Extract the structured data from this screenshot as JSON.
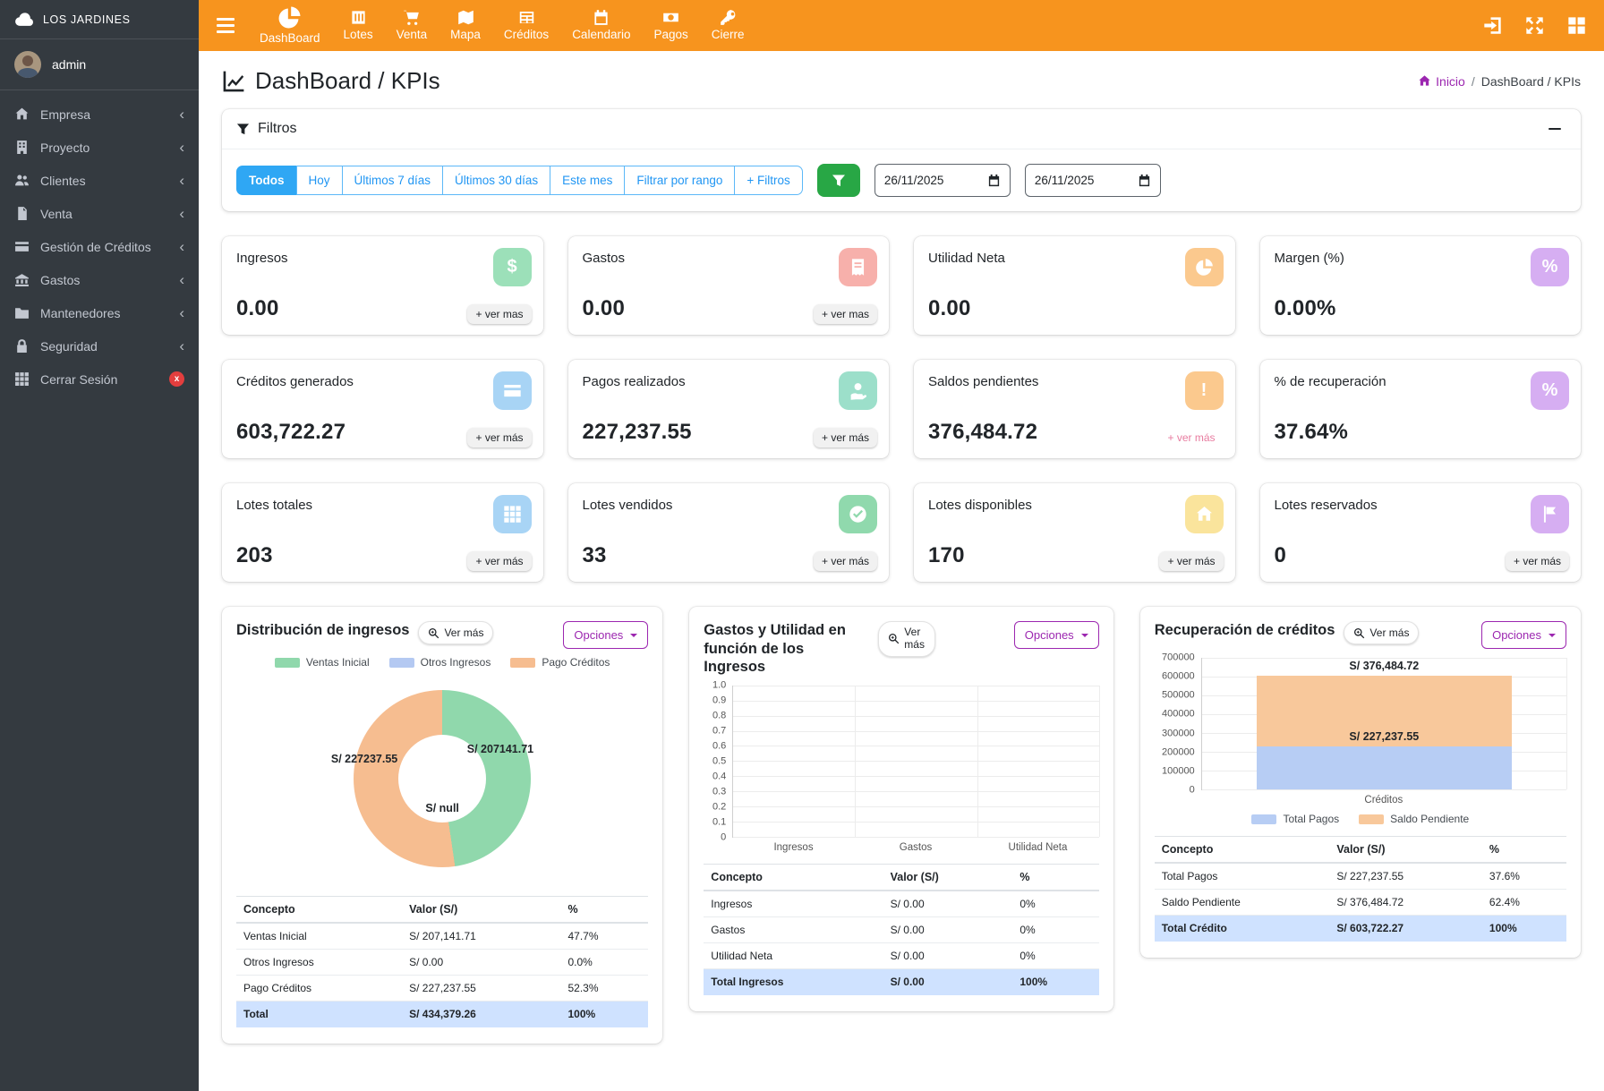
{
  "app": {
    "brand": "LOS JARDINES",
    "user": "admin"
  },
  "theme": {
    "navbar_orange": "#f7941e",
    "sidebar_dark": "#343a40",
    "primary_blue": "#2fa7f4",
    "success_green": "#28a745",
    "accent_purple": "#9c27b0",
    "table_total_bg": "#cfe2ff"
  },
  "sidebar": {
    "items": [
      {
        "label": "Empresa"
      },
      {
        "label": "Proyecto"
      },
      {
        "label": "Clientes"
      },
      {
        "label": "Venta"
      },
      {
        "label": "Gestión de Créditos"
      },
      {
        "label": "Gastos"
      },
      {
        "label": "Mantenedores"
      },
      {
        "label": "Seguridad"
      }
    ],
    "logout": {
      "label": "Cerrar Sesión",
      "badge": "x"
    }
  },
  "topnav": {
    "items": [
      {
        "label": "DashBoard"
      },
      {
        "label": "Lotes"
      },
      {
        "label": "Venta"
      },
      {
        "label": "Mapa"
      },
      {
        "label": "Créditos"
      },
      {
        "label": "Calendario"
      },
      {
        "label": "Pagos"
      },
      {
        "label": "Cierre"
      }
    ]
  },
  "header": {
    "title": "DashBoard / KPIs",
    "breadcrumb_home": "Inicio",
    "breadcrumb_sep": "/",
    "breadcrumb_current": "DashBoard / KPIs"
  },
  "filters": {
    "title": "Filtros",
    "buttons": [
      "Todos",
      "Hoy",
      "Últimos 7 días",
      "Últimos 30 días",
      "Este mes",
      "Filtrar por rango",
      "+ Filtros"
    ],
    "active_button": "Todos",
    "date_from": "26/11/2025",
    "date_to": "26/11/2025"
  },
  "kpis": [
    {
      "title": "Ingresos",
      "value": "0.00",
      "link": "+ ver mas",
      "color": "#9ce0b9"
    },
    {
      "title": "Gastos",
      "value": "0.00",
      "link": "+ ver mas",
      "color": "#f7b0ab"
    },
    {
      "title": "Utilidad Neta",
      "value": "0.00",
      "link": "",
      "color": "#fbc98e"
    },
    {
      "title": "Margen (%)",
      "value": "0.00%",
      "link": "",
      "color": "#d6aef2"
    },
    {
      "title": "Créditos generados",
      "value": "603,722.27",
      "link": "+ ver más",
      "color": "#a8d4f5"
    },
    {
      "title": "Pagos realizados",
      "value": "227,237.55",
      "link": "+ ver más",
      "color": "#9cdfca"
    },
    {
      "title": "Saldos pendientes",
      "value": "376,484.72",
      "link": "+ ver más",
      "color": "#fbc98e",
      "link_color": "#e87ca0"
    },
    {
      "title": "% de recuperación",
      "value": "37.64%",
      "link": "",
      "color": "#d6aef2"
    },
    {
      "title": "Lotes totales",
      "value": "203",
      "link": "+ ver más",
      "color": "#a8d4f5"
    },
    {
      "title": "Lotes vendidos",
      "value": "33",
      "link": "+ ver más",
      "color": "#90d9ad"
    },
    {
      "title": "Lotes disponibles",
      "value": "170",
      "link": "+ ver más",
      "color": "#fae49c"
    },
    {
      "title": "Lotes reservados",
      "value": "0",
      "link": "+ ver más",
      "color": "#d6aef2"
    }
  ],
  "panels": {
    "p1": {
      "title": "Distribución de ingresos",
      "ver_mas": "Ver más",
      "opciones": "Opciones",
      "legend": [
        {
          "label": "Ventas Inicial",
          "color": "#90d8ac"
        },
        {
          "label": "Otros Ingresos",
          "color": "#b4c9f2"
        },
        {
          "label": "Pago Créditos",
          "color": "#f6bd90"
        }
      ],
      "donut_labels": {
        "right": "S/ 207141.71",
        "left": "S/ 227237.55",
        "bottom": "S/ null"
      },
      "table": {
        "headers": [
          "Concepto",
          "Valor (S/)",
          "%"
        ],
        "rows": [
          [
            "Ventas Inicial",
            "S/ 207,141.71",
            "47.7%"
          ],
          [
            "Otros Ingresos",
            "S/ 0.00",
            "0.0%"
          ],
          [
            "Pago Créditos",
            "S/ 227,237.55",
            "52.3%"
          ]
        ],
        "total": [
          "Total",
          "S/ 434,379.26",
          "100%"
        ]
      }
    },
    "p2": {
      "title": "Gastos y Utilidad en función de los Ingresos",
      "ver_mas": "Ver más",
      "opciones": "Opciones",
      "table": {
        "headers": [
          "Concepto",
          "Valor (S/)",
          "%"
        ],
        "rows": [
          [
            "Ingresos",
            "S/ 0.00",
            "0%"
          ],
          [
            "Gastos",
            "S/ 0.00",
            "0%"
          ],
          [
            "Utilidad Neta",
            "S/ 0.00",
            "0%"
          ]
        ],
        "total": [
          "Total Ingresos",
          "S/ 0.00",
          "100%"
        ]
      }
    },
    "p3": {
      "title": "Recuperación de créditos",
      "ver_mas": "Ver más",
      "opciones": "Opciones",
      "bar_labels": {
        "top": "S/ 376,484.72",
        "middle": "S/ 227,237.55"
      },
      "legend": [
        {
          "label": "Total Pagos",
          "color": "#b7cdf4"
        },
        {
          "label": "Saldo Pendiente",
          "color": "#f8c89b"
        }
      ],
      "table": {
        "headers": [
          "Concepto",
          "Valor (S/)",
          "%"
        ],
        "rows": [
          [
            "Total Pagos",
            "S/ 227,237.55",
            "37.6%"
          ],
          [
            "Saldo Pendiente",
            "S/ 376,484.72",
            "62.4%"
          ]
        ],
        "total": [
          "Total Crédito",
          "S/ 603,722.27",
          "100%"
        ]
      }
    }
  },
  "chart_data": [
    {
      "type": "pie",
      "title": "Distribución de ingresos",
      "labels": [
        "Ventas Inicial",
        "Otros Ingresos",
        "Pago Créditos"
      ],
      "values": [
        207141.71,
        0,
        227237.55
      ],
      "percentages": [
        47.7,
        0.0,
        52.3
      ],
      "total": 434379.26,
      "colors": [
        "#90d8ac",
        "#b4c9f2",
        "#f6bd90"
      ],
      "donut": true,
      "legend_position": "top"
    },
    {
      "type": "bar",
      "title": "Gastos y Utilidad en función de los Ingresos",
      "categories": [
        "Ingresos",
        "Gastos",
        "Utilidad Neta"
      ],
      "values": [
        0,
        0,
        0
      ],
      "ylim": [
        0,
        1.0
      ],
      "ytick_step": 0.1,
      "grid": true
    },
    {
      "type": "bar",
      "stacked": true,
      "title": "Recuperación de créditos",
      "categories": [
        "Créditos"
      ],
      "series": [
        {
          "name": "Total Pagos",
          "values": [
            227237.55
          ],
          "color": "#b7cdf4"
        },
        {
          "name": "Saldo Pendiente",
          "values": [
            376484.72
          ],
          "color": "#f8c89b"
        }
      ],
      "ylim": [
        0,
        700000
      ],
      "ytick_step": 100000,
      "annotations": [
        "S/ 376,484.72",
        "S/ 227,237.55"
      ],
      "legend_position": "bottom",
      "grid": true
    }
  ]
}
